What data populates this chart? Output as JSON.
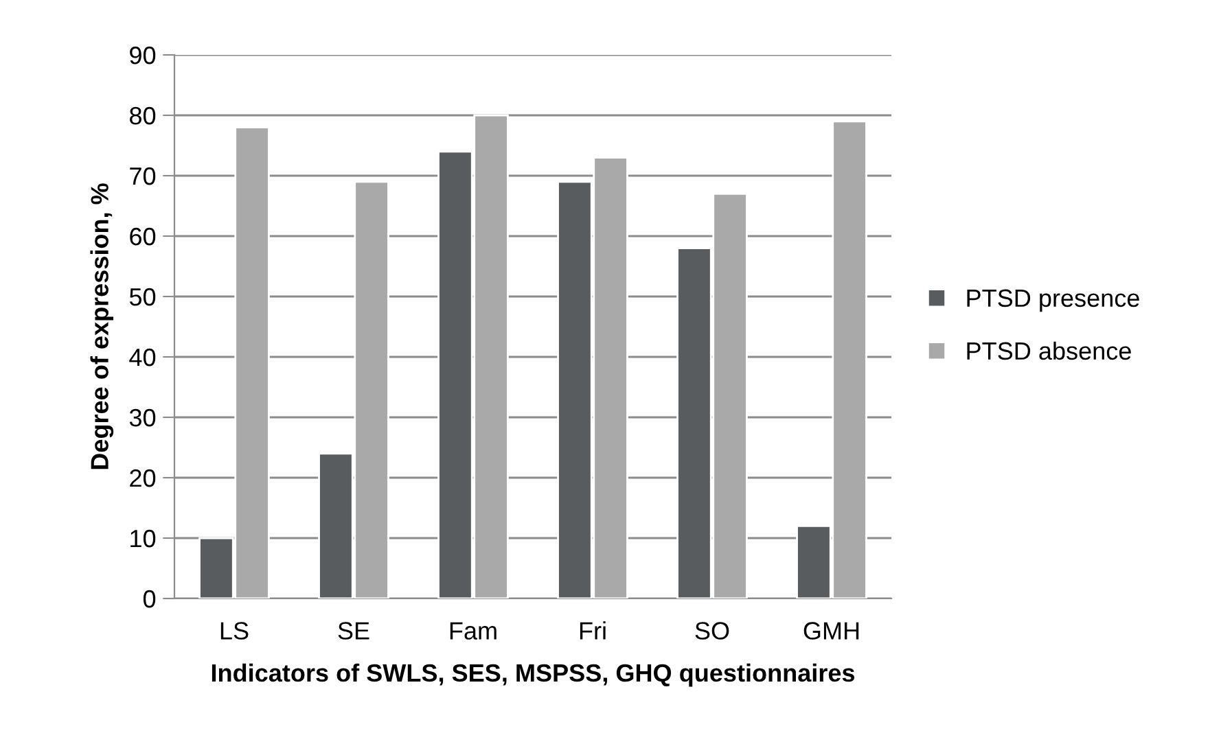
{
  "chart_data": {
    "type": "bar",
    "xlabel": "Indicators of SWLS, SES, MSPSS, GHQ questionnaires",
    "ylabel": "Degree of expression, %",
    "categories": [
      "LS",
      "SE",
      "Fam",
      "Fri",
      "SO",
      "GMH"
    ],
    "series": [
      {
        "name": "PTSD presence",
        "color": "#595c5e",
        "values": [
          10,
          24,
          74,
          69,
          58,
          12
        ]
      },
      {
        "name": "PTSD absence",
        "color": "#a9a9a9",
        "values": [
          78,
          69,
          80,
          73,
          67,
          79
        ]
      }
    ],
    "ylim": [
      0,
      90
    ],
    "yticks": [
      0,
      10,
      20,
      30,
      40,
      50,
      60,
      70,
      80,
      90
    ],
    "grid": "y",
    "legend": "right"
  }
}
